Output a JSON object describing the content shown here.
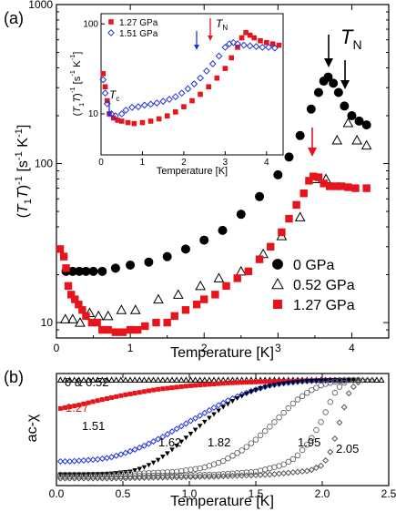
{
  "chart_data": [
    {
      "type": "scatter",
      "panel_label": "(a)",
      "xlabel": "Temperature [K]",
      "ylabel_parts": [
        "(",
        "T",
        "1",
        "T",
        ")",
        "-1",
        " [s",
        "-1",
        " K",
        "-1",
        "]"
      ],
      "xlim": [
        0,
        4.5
      ],
      "ylim": [
        8,
        1000
      ],
      "yscale": "log",
      "x_ticks": [
        "0",
        "1",
        "2",
        "3",
        "4"
      ],
      "y_ticks": [
        "10",
        "100",
        "1000"
      ],
      "annotation": {
        "main": "T",
        "sub": "N"
      },
      "legend_position": "bottom-right",
      "series": [
        {
          "name": "0 GPa",
          "marker": "circle",
          "color": "#000000",
          "x": [
            0.13,
            0.22,
            0.31,
            0.4,
            0.5,
            0.62,
            0.8,
            1.0,
            1.25,
            1.5,
            1.75,
            2.0,
            2.25,
            2.5,
            2.75,
            3.0,
            3.15,
            3.3,
            3.45,
            3.55,
            3.62,
            3.68,
            3.75,
            3.82,
            3.9,
            4.0,
            4.1,
            4.2
          ],
          "y": [
            21,
            21,
            21,
            21,
            21,
            21,
            22,
            23,
            24,
            26,
            29,
            33,
            38,
            48,
            62,
            85,
            110,
            150,
            220,
            280,
            330,
            350,
            320,
            280,
            230,
            200,
            185,
            175
          ]
        },
        {
          "name": "0.52 GPa",
          "marker": "triangle",
          "color": "#000000",
          "x": [
            0.12,
            0.22,
            0.32,
            0.45,
            0.57,
            0.7,
            0.88,
            1.07,
            1.38,
            1.65,
            1.95,
            2.2,
            2.5,
            2.8,
            3.05,
            3.3,
            3.5,
            3.65,
            3.8,
            3.95,
            4.07,
            4.2
          ],
          "y": [
            10.5,
            10.5,
            10.0,
            11.5,
            11,
            11,
            12,
            12,
            14,
            15,
            17,
            19,
            21,
            27,
            35,
            46,
            80,
            80,
            140,
            180,
            140,
            130
          ]
        },
        {
          "name": "1.27 GPa",
          "marker": "square",
          "color": "#e8141c",
          "x": [
            0.05,
            0.1,
            0.13,
            0.16,
            0.2,
            0.25,
            0.3,
            0.35,
            0.4,
            0.48,
            0.55,
            0.62,
            0.7,
            0.8,
            0.9,
            1.0,
            1.1,
            1.2,
            1.35,
            1.5,
            1.6,
            1.75,
            1.9,
            2.0,
            2.15,
            2.3,
            2.45,
            2.6,
            2.75,
            2.9,
            3.05,
            3.15,
            3.25,
            3.35,
            3.42,
            3.48,
            3.55,
            3.62,
            3.7,
            3.78,
            3.86,
            3.95,
            4.05,
            4.2
          ],
          "y": [
            29,
            26,
            22,
            17,
            15,
            14,
            13,
            12,
            11,
            10,
            10,
            9,
            9,
            8.7,
            8.7,
            9,
            9,
            9.5,
            10,
            10,
            11,
            12,
            13,
            14,
            15,
            17,
            19,
            21,
            25,
            30,
            37,
            45,
            55,
            65,
            78,
            83,
            82,
            75,
            72,
            72,
            72,
            71,
            70,
            70
          ]
        }
      ]
    },
    {
      "type": "scatter",
      "inset": true,
      "xlabel": "Temperature [K]",
      "ylabel_parts": [
        "(",
        "T",
        "1",
        "T",
        ")",
        "-1",
        " [s",
        "-1",
        " K",
        "-1",
        "]"
      ],
      "xlim": [
        0,
        4.4
      ],
      "ylim": [
        3.5,
        130
      ],
      "yscale": "log",
      "x_ticks": [
        "0",
        "1",
        "2",
        "3",
        "4"
      ],
      "y_ticks": [
        "10",
        "100"
      ],
      "annotation_tc": {
        "main": "T",
        "sub": "c"
      },
      "annotation_tn": {
        "main": "T",
        "sub": "N"
      },
      "series": [
        {
          "name": "1.27 GPa",
          "marker": "square",
          "color": "#e8141c",
          "x": [
            0.05,
            0.1,
            0.15,
            0.2,
            0.3,
            0.4,
            0.5,
            0.65,
            0.8,
            1.0,
            1.2,
            1.4,
            1.6,
            1.8,
            2.0,
            2.2,
            2.4,
            2.6,
            2.8,
            3.0,
            3.15,
            3.3,
            3.4,
            3.5,
            3.6,
            3.7,
            3.85,
            4.0,
            4.15,
            4.3
          ],
          "y": [
            28,
            20,
            14,
            10,
            9,
            8.5,
            8.3,
            8,
            7.8,
            8,
            8.3,
            8.8,
            9.5,
            10.5,
            12,
            14,
            16.5,
            20,
            25,
            32,
            42,
            55,
            70,
            80,
            75,
            70,
            65,
            62,
            60,
            58
          ]
        },
        {
          "name": "1.51 GPa",
          "marker": "diamond",
          "color": "#2233dd",
          "x": [
            0.05,
            0.1,
            0.15,
            0.25,
            0.35,
            0.5,
            0.6,
            0.75,
            0.9,
            1.05,
            1.2,
            1.35,
            1.5,
            1.65,
            1.8,
            1.95,
            2.1,
            2.25,
            2.4,
            2.55,
            2.7,
            2.85,
            3.0,
            3.1,
            3.2,
            3.3,
            3.45,
            3.6,
            3.75,
            3.9,
            4.05,
            4.2
          ],
          "y": [
            24,
            17,
            13,
            10,
            9.5,
            10,
            11,
            11.8,
            12,
            12.5,
            12.8,
            13.2,
            13.8,
            14.5,
            15.5,
            17,
            19,
            21.5,
            25,
            30,
            36,
            44,
            55,
            60,
            62,
            60,
            58,
            57,
            56,
            55,
            55,
            54
          ]
        }
      ]
    },
    {
      "type": "line",
      "panel_label": "(b)",
      "xlabel": "Temperature [K]",
      "ylabel": "ac-χ",
      "xlim": [
        0,
        2.5
      ],
      "ylim": [
        -1,
        0.05
      ],
      "x_ticks": [
        "0.0",
        "0.5",
        "1.0",
        "1.5",
        "2.0",
        "2.5"
      ],
      "series": [
        {
          "name": "0 & 0.52",
          "marker": "triangle",
          "color": "#000000",
          "x": [
            0.03,
            0.1,
            0.2,
            0.3,
            0.4,
            0.5,
            0.7,
            1.0,
            1.4,
            1.8,
            2.2,
            2.45
          ],
          "y": [
            0.0,
            0.0,
            0.0,
            0.0,
            0.0,
            0.0,
            0.0,
            0.0,
            0.0,
            0.0,
            0.0,
            0.0
          ]
        },
        {
          "name": "1.27",
          "marker": "square",
          "color": "#e8141c",
          "x": [
            0.03,
            0.15,
            0.3,
            0.5,
            0.75,
            1.0,
            1.3,
            1.6,
            1.9,
            2.1,
            2.2
          ],
          "y": [
            -0.3,
            -0.27,
            -0.22,
            -0.16,
            -0.1,
            -0.06,
            -0.03,
            -0.015,
            -0.005,
            0.0,
            0.0
          ]
        },
        {
          "name": "1.51",
          "marker": "diamond",
          "color": "#2233dd",
          "x": [
            0.03,
            0.1,
            0.2,
            0.3,
            0.4,
            0.5,
            0.6,
            0.7,
            0.8,
            0.9,
            1.0,
            1.1,
            1.2,
            1.3,
            1.4,
            1.5,
            1.6,
            1.7,
            1.8,
            1.9,
            2.0,
            2.1,
            2.2
          ],
          "y": [
            -0.86,
            -0.86,
            -0.85,
            -0.84,
            -0.82,
            -0.78,
            -0.73,
            -0.67,
            -0.6,
            -0.52,
            -0.44,
            -0.36,
            -0.28,
            -0.21,
            -0.15,
            -0.1,
            -0.06,
            -0.035,
            -0.02,
            -0.01,
            -0.005,
            0.0,
            0.0
          ]
        },
        {
          "name": "1.62",
          "marker": "triangle-down",
          "color": "#000000",
          "x": [
            0.03,
            0.2,
            0.4,
            0.55,
            0.65,
            0.75,
            0.85,
            0.95,
            1.05,
            1.15,
            1.25,
            1.35,
            1.45,
            1.55,
            1.65,
            1.75,
            1.85,
            1.95,
            2.05,
            2.15,
            2.25
          ],
          "y": [
            -1.0,
            -1.0,
            -0.99,
            -0.97,
            -0.93,
            -0.86,
            -0.76,
            -0.64,
            -0.52,
            -0.4,
            -0.29,
            -0.2,
            -0.13,
            -0.08,
            -0.05,
            -0.03,
            -0.015,
            -0.008,
            -0.003,
            0.0,
            0.0
          ]
        },
        {
          "name": "1.82",
          "marker": "circle",
          "color": "#888888",
          "x": [
            0.03,
            0.3,
            0.6,
            0.9,
            1.1,
            1.25,
            1.4,
            1.5,
            1.6,
            1.7,
            1.8,
            1.9,
            2.0,
            2.1,
            2.2,
            2.3
          ],
          "y": [
            -1.0,
            -1.0,
            -0.99,
            -0.97,
            -0.93,
            -0.86,
            -0.74,
            -0.63,
            -0.5,
            -0.36,
            -0.22,
            -0.12,
            -0.05,
            -0.015,
            0.0,
            0.0
          ]
        },
        {
          "name": "1.95",
          "marker": "circle",
          "color": "#888888",
          "x": [
            0.03,
            0.4,
            0.8,
            1.2,
            1.5,
            1.7,
            1.8,
            1.9,
            2.0,
            2.05,
            2.1,
            2.15,
            2.2,
            2.3
          ],
          "y": [
            -1.02,
            -1.02,
            -1.01,
            -1.0,
            -0.97,
            -0.9,
            -0.82,
            -0.66,
            -0.42,
            -0.26,
            -0.12,
            -0.04,
            0.0,
            0.0
          ]
        },
        {
          "name": "2.05",
          "marker": "diamond",
          "color": "#888888",
          "x": [
            0.03,
            0.4,
            0.8,
            1.2,
            1.6,
            1.9,
            2.0,
            2.05,
            2.1,
            2.15,
            2.2,
            2.25,
            2.3,
            2.4
          ],
          "y": [
            -1.04,
            -1.04,
            -1.03,
            -1.02,
            -1.0,
            -0.96,
            -0.9,
            -0.8,
            -0.6,
            -0.35,
            -0.14,
            -0.04,
            0.0,
            0.0
          ]
        }
      ]
    }
  ]
}
